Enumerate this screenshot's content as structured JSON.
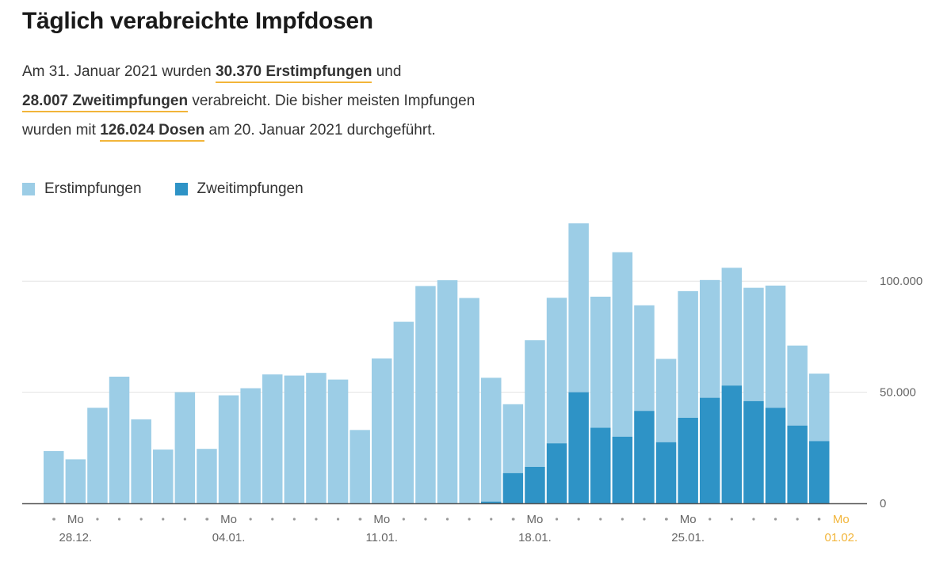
{
  "header": {
    "title": "Täglich verabreichte Impfdosen"
  },
  "summary": {
    "line1_pre": "Am 31. Januar 2021 wurden ",
    "line1_highlight": "30.370 Erstimpfungen",
    "line1_post": " und",
    "line2_highlight": "28.007 Zweitimpfungen",
    "line2_post": " verabreicht. Die bisher meisten Impfungen",
    "line3_pre": "wurden mit ",
    "line3_highlight": "126.024 Dosen",
    "line3_post": " am 20. Januar 2021 durchgeführt."
  },
  "colors": {
    "erst": "#9ccde6",
    "zweit": "#2e93c6",
    "highlight": "#f2b53a",
    "grid": "#e2e2e2",
    "axis": "#555555"
  },
  "chart_data": {
    "type": "bar",
    "stacked": true,
    "title": "Täglich verabreichte Impfdosen",
    "legend_position": "top-left",
    "y_axis_position": "right",
    "ylim": [
      0,
      130000
    ],
    "y_ticks": [
      {
        "value": 0,
        "label": "0"
      },
      {
        "value": 50000,
        "label": "50.000"
      },
      {
        "value": 100000,
        "label": "100.000"
      }
    ],
    "grid": true,
    "categories": [
      "27.12.",
      "28.12.",
      "29.12.",
      "30.12.",
      "31.12.",
      "01.01.",
      "02.01.",
      "03.01.",
      "04.01.",
      "05.01.",
      "06.01.",
      "07.01.",
      "08.01.",
      "09.01.",
      "10.01.",
      "11.01.",
      "12.01.",
      "13.01.",
      "14.01.",
      "15.01.",
      "16.01.",
      "17.01.",
      "18.01.",
      "19.01.",
      "20.01.",
      "21.01.",
      "22.01.",
      "23.01.",
      "24.01.",
      "25.01.",
      "26.01.",
      "27.01.",
      "28.01.",
      "29.01.",
      "30.01.",
      "31.01."
    ],
    "series": [
      {
        "name": "Erstimpfungen",
        "values": [
          23500,
          19800,
          43000,
          57000,
          37800,
          24200,
          50000,
          24500,
          48600,
          51800,
          58000,
          57500,
          58700,
          55700,
          33000,
          65200,
          81700,
          97800,
          100400,
          92400,
          55700,
          31000,
          57000,
          65500,
          76000,
          59000,
          83000,
          47500,
          37500,
          57000,
          53000,
          53000,
          51000,
          55000,
          36000,
          30370
        ]
      },
      {
        "name": "Zweitimpfungen",
        "values": [
          0,
          0,
          0,
          0,
          0,
          0,
          0,
          0,
          0,
          0,
          0,
          0,
          0,
          0,
          0,
          0,
          0,
          0,
          0,
          0,
          800,
          13600,
          16400,
          27000,
          50000,
          34000,
          30000,
          41600,
          27500,
          38500,
          47500,
          53000,
          46000,
          43000,
          35000,
          28007
        ]
      }
    ],
    "x_ticks": [
      {
        "weekday": "Mo",
        "date": "28.12."
      },
      {
        "weekday": "Mo",
        "date": "04.01."
      },
      {
        "weekday": "Mo",
        "date": "11.01."
      },
      {
        "weekday": "Mo",
        "date": "18.01."
      },
      {
        "weekday": "Mo",
        "date": "25.01."
      },
      {
        "weekday": "Mo",
        "date": "01.02.",
        "highlight": true
      }
    ]
  }
}
